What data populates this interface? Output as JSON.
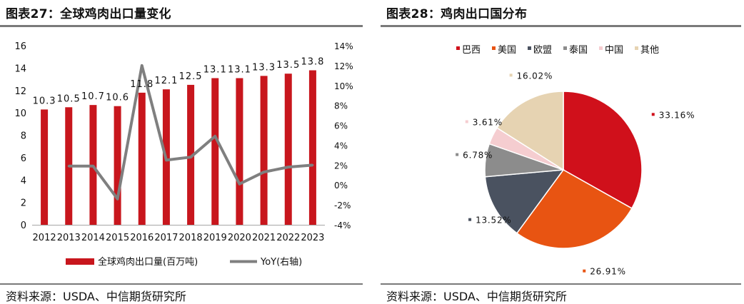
{
  "left_panel": {
    "title": "图表27：全球鸡肉出口量变化",
    "source": "资料来源：USDA、中信期货研究所"
  },
  "right_panel": {
    "title": "图表28：鸡肉出口国分布",
    "source": "资料来源：USDA、中信期货研究所"
  },
  "colors": {
    "bar": "#c8161d",
    "line": "#7f7f7f",
    "rule": "#7a7a7a",
    "text": "#111111"
  },
  "chart_data": [
    {
      "type": "bar",
      "title": "图表27：全球鸡肉出口量变化",
      "categories": [
        "2012",
        "2013",
        "2014",
        "2015",
        "2016",
        "2017",
        "2018",
        "2019",
        "2020",
        "2021",
        "2022",
        "2023"
      ],
      "series": [
        {
          "name": "全球鸡肉出口量(百万吨)",
          "type": "bar",
          "axis": "left",
          "values": [
            10.3,
            10.5,
            10.7,
            10.6,
            11.8,
            12.1,
            12.5,
            13.1,
            13.1,
            13.3,
            13.5,
            13.8
          ],
          "labels": [
            "10.3",
            "10.5",
            "10.7",
            "10.6",
            "11.8",
            "12.1",
            "12.5",
            "13.1",
            "13.1",
            "13.3",
            "13.5",
            "13.8"
          ]
        },
        {
          "name": "YoY(右轴)",
          "type": "line",
          "axis": "right",
          "values": [
            null,
            1.9,
            1.9,
            -1.4,
            12.0,
            2.5,
            2.8,
            4.9,
            0.1,
            1.3,
            1.8,
            2.0
          ]
        }
      ],
      "y_left": {
        "ylim": [
          0,
          16
        ],
        "ticks": [
          0,
          2,
          4,
          6,
          8,
          10,
          12,
          14,
          16
        ]
      },
      "y_right": {
        "ylim": [
          -4,
          14
        ],
        "ticks": [
          -4,
          -2,
          0,
          2,
          4,
          6,
          8,
          10,
          12,
          14
        ],
        "tick_labels": [
          "-4%",
          "-2%",
          "0%",
          "2%",
          "4%",
          "6%",
          "8%",
          "10%",
          "12%",
          "14%"
        ]
      },
      "legend": [
        "全球鸡肉出口量(百万吨)",
        "YoY(右轴)"
      ],
      "legend_position": "bottom",
      "grid": false
    },
    {
      "type": "pie",
      "title": "图表28：鸡肉出口国分布",
      "slices": [
        {
          "name": "巴西",
          "value": 33.16,
          "label": "33.16%",
          "color": "#d0101b"
        },
        {
          "name": "美国",
          "value": 26.91,
          "label": "26.91%",
          "color": "#e85412"
        },
        {
          "name": "欧盟",
          "value": 13.52,
          "label": "13.52%",
          "color": "#4a5260"
        },
        {
          "name": "泰国",
          "value": 6.78,
          "label": "6.78%",
          "color": "#8c8c8c"
        },
        {
          "name": "中国",
          "value": 3.61,
          "label": "3.61%",
          "color": "#f5cdd0"
        },
        {
          "name": "其他",
          "value": 16.02,
          "label": "16.02%",
          "color": "#e6d3b2"
        }
      ],
      "legend_position": "top",
      "start_angle": "12 o'clock",
      "direction": "clockwise"
    }
  ]
}
